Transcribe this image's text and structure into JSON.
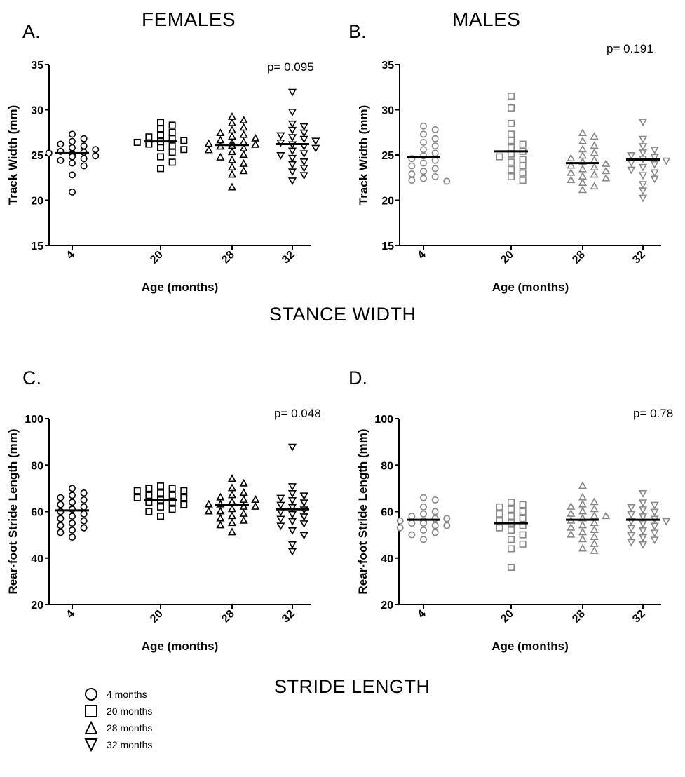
{
  "panel_titles": {
    "females": "FEMALES",
    "males": "MALES"
  },
  "section_titles": {
    "stance": "STANCE WIDTH",
    "stride": "STRIDE LENGTH"
  },
  "legend": {
    "items": [
      {
        "label": "4 months",
        "marker": "circle"
      },
      {
        "label": "20 months",
        "marker": "square"
      },
      {
        "label": "28 months",
        "marker": "triangle-up"
      },
      {
        "label": "32 months",
        "marker": "triangle-down"
      }
    ]
  },
  "chart_data": [
    {
      "type": "scatter",
      "panel": "A.",
      "pvalue": "p= 0.095",
      "xlabel": "Age (months)",
      "ylabel": "Track Width (mm)",
      "ylim": [
        15,
        35
      ],
      "yticks": [
        15,
        20,
        25,
        30,
        35
      ],
      "categories": [
        "4",
        "20",
        "28",
        "32"
      ],
      "marker_color": "#000000",
      "series": [
        {
          "category": "4",
          "marker": "circle",
          "mean": 25.2,
          "values": [
            27.3,
            26.8,
            26.5,
            26.2,
            26.0,
            25.8,
            25.6,
            25.4,
            25.3,
            25.2,
            25.1,
            25.0,
            24.9,
            24.8,
            24.6,
            24.4,
            24.1,
            23.8,
            22.8,
            20.9
          ]
        },
        {
          "category": "20",
          "marker": "square",
          "mean": 26.5,
          "values": [
            28.6,
            28.3,
            27.9,
            27.5,
            27.2,
            27.0,
            26.8,
            26.6,
            26.5,
            26.4,
            26.2,
            26.0,
            25.8,
            25.6,
            25.3,
            24.8,
            24.2,
            23.5
          ]
        },
        {
          "category": "28",
          "marker": "triangle-up",
          "mean": 26.1,
          "values": [
            29.2,
            28.8,
            28.5,
            28.0,
            27.7,
            27.4,
            27.2,
            27.0,
            26.8,
            26.6,
            26.4,
            26.3,
            26.2,
            26.1,
            26.0,
            25.9,
            25.7,
            25.5,
            25.3,
            25.0,
            24.7,
            24.4,
            24.0,
            23.6,
            23.2,
            22.8,
            21.4
          ]
        },
        {
          "category": "32",
          "marker": "triangle-down",
          "mean": 26.2,
          "values": [
            32.0,
            29.8,
            28.5,
            28.2,
            27.8,
            27.5,
            27.2,
            27.0,
            26.8,
            26.6,
            26.4,
            26.2,
            26.0,
            25.8,
            25.5,
            25.2,
            25.0,
            24.7,
            24.3,
            24.0,
            23.6,
            23.2,
            22.8,
            22.2
          ]
        }
      ]
    },
    {
      "type": "scatter",
      "panel": "B.",
      "pvalue": "p= 0.191",
      "xlabel": "Age (months)",
      "ylabel": "Track Width (mm)",
      "ylim": [
        15,
        35
      ],
      "yticks": [
        15,
        20,
        25,
        30,
        35
      ],
      "categories": [
        "4",
        "20",
        "28",
        "32"
      ],
      "marker_color": "#888888",
      "series": [
        {
          "category": "4",
          "marker": "circle",
          "mean": 24.8,
          "values": [
            28.2,
            27.8,
            27.3,
            26.8,
            26.4,
            26.0,
            25.6,
            25.2,
            24.9,
            24.6,
            24.4,
            24.1,
            23.8,
            23.5,
            23.2,
            22.9,
            22.6,
            22.4,
            22.2,
            22.1
          ]
        },
        {
          "category": "20",
          "marker": "square",
          "mean": 25.4,
          "values": [
            31.5,
            30.2,
            28.5,
            27.3,
            26.6,
            26.2,
            25.8,
            25.4,
            25.1,
            24.8,
            24.5,
            24.2,
            23.8,
            23.4,
            23.0,
            22.6,
            22.2
          ]
        },
        {
          "category": "28",
          "marker": "triangle-up",
          "mean": 24.1,
          "values": [
            27.4,
            27.0,
            26.5,
            26.0,
            25.6,
            25.2,
            24.9,
            24.6,
            24.4,
            24.2,
            24.0,
            23.8,
            23.6,
            23.4,
            23.2,
            23.0,
            22.8,
            22.6,
            22.4,
            22.2,
            21.9,
            21.5,
            21.1
          ]
        },
        {
          "category": "32",
          "marker": "triangle-down",
          "mean": 24.5,
          "values": [
            28.7,
            26.8,
            26.0,
            25.6,
            25.3,
            25.0,
            24.8,
            24.6,
            24.4,
            24.2,
            24.0,
            23.7,
            23.4,
            23.1,
            22.8,
            22.4,
            21.8,
            21.1,
            20.3
          ]
        }
      ]
    },
    {
      "type": "scatter",
      "panel": "C.",
      "pvalue": "p= 0.048",
      "xlabel": "Age (months)",
      "ylabel": "Rear-foot Stride Length (mm)",
      "ylim": [
        20,
        100
      ],
      "yticks": [
        20,
        40,
        60,
        80,
        100
      ],
      "categories": [
        "4",
        "20",
        "28",
        "32"
      ],
      "marker_color": "#000000",
      "series": [
        {
          "category": "4",
          "marker": "circle",
          "mean": 60.5,
          "values": [
            70,
            68,
            67,
            66,
            65,
            64,
            63,
            62,
            61,
            60,
            59,
            58,
            57,
            56,
            55,
            54,
            53,
            52,
            51,
            49
          ]
        },
        {
          "category": "20",
          "marker": "square",
          "mean": 65,
          "values": [
            71,
            70,
            70,
            69,
            69,
            68,
            68,
            67,
            67,
            66,
            66,
            65,
            65,
            64,
            64,
            63,
            62,
            61,
            60,
            58
          ]
        },
        {
          "category": "28",
          "marker": "triangle-up",
          "mean": 63,
          "values": [
            74,
            72,
            70,
            68,
            67,
            66,
            65,
            65,
            64,
            63,
            63,
            62,
            62,
            61,
            60,
            60,
            59,
            58,
            57,
            56,
            55,
            54,
            51
          ]
        },
        {
          "category": "32",
          "marker": "triangle-down",
          "mean": 61,
          "values": [
            88,
            71,
            68,
            67,
            66,
            65,
            64,
            63,
            62,
            61,
            60,
            59,
            58,
            57,
            56,
            55,
            54,
            52,
            50,
            46,
            43
          ]
        }
      ]
    },
    {
      "type": "scatter",
      "panel": "D.",
      "pvalue": "p= 0.78",
      "xlabel": "Age (months)",
      "ylabel": "Rear-foot Stride Length (mm)",
      "ylim": [
        20,
        100
      ],
      "yticks": [
        20,
        40,
        60,
        80,
        100
      ],
      "categories": [
        "4",
        "20",
        "28",
        "32"
      ],
      "marker_color": "#888888",
      "series": [
        {
          "category": "4",
          "marker": "circle",
          "mean": 56.5,
          "values": [
            66,
            65,
            62,
            60,
            59,
            58,
            57,
            57,
            56,
            56,
            55,
            55,
            54,
            54,
            53,
            52,
            51,
            50,
            48
          ]
        },
        {
          "category": "20",
          "marker": "square",
          "mean": 55,
          "values": [
            64,
            63,
            62,
            61,
            60,
            59,
            58,
            57,
            56,
            55,
            54,
            53,
            52,
            50,
            48,
            46,
            44,
            36
          ]
        },
        {
          "category": "28",
          "marker": "triangle-up",
          "mean": 56.5,
          "values": [
            71,
            66,
            64,
            63,
            62,
            61,
            60,
            59,
            58,
            58,
            57,
            56,
            55,
            54,
            53,
            52,
            51,
            50,
            49,
            48,
            46,
            44,
            43
          ]
        },
        {
          "category": "32",
          "marker": "triangle-down",
          "mean": 56.5,
          "values": [
            68,
            64,
            63,
            62,
            61,
            60,
            59,
            58,
            57,
            56,
            56,
            55,
            54,
            53,
            52,
            51,
            50,
            49,
            48,
            47,
            46
          ]
        }
      ]
    }
  ]
}
